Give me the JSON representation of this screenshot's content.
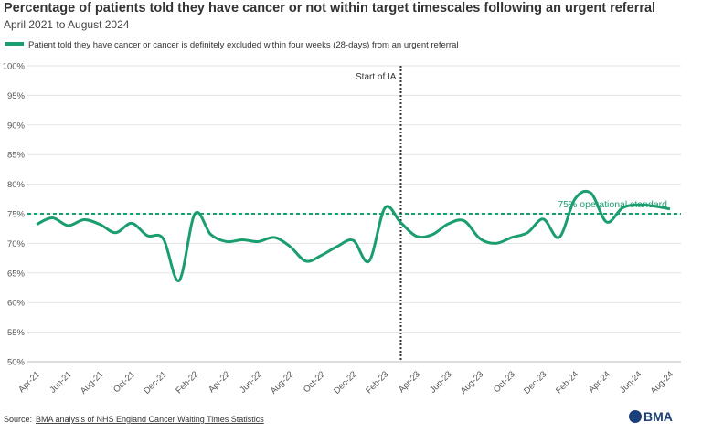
{
  "chart_data": {
    "type": "line",
    "title": "Percentage of patients told they have cancer or not within target timescales following an urgent referral",
    "subtitle": "April 2021 to August 2024",
    "categories": [
      "Apr-21",
      null,
      "Jun-21",
      null,
      "Aug-21",
      null,
      "Oct-21",
      null,
      "Dec-21",
      null,
      "Feb-22",
      null,
      "Apr-22",
      null,
      "Jun-22",
      null,
      "Aug-22",
      null,
      "Oct-22",
      null,
      "Dec-22",
      null,
      "Feb-23",
      null,
      "Apr-23",
      null,
      "Jun-23",
      null,
      "Aug-23",
      null,
      "Oct-23",
      null,
      "Dec-23",
      null,
      "Feb-24",
      null,
      "Apr-24",
      null,
      "Jun-24",
      null,
      "Aug-24"
    ],
    "series": [
      {
        "name": "Patient told they have cancer or cancer is definitely excluded within four weeks (28-days) from an urgent referral",
        "color": "#1a9e6e",
        "values": [
          73.2,
          74.3,
          73.0,
          74.0,
          73.2,
          71.8,
          73.4,
          71.3,
          70.8,
          63.7,
          75.0,
          71.5,
          70.3,
          70.6,
          70.3,
          71.0,
          69.5,
          67.0,
          68.0,
          69.5,
          70.5,
          67.0,
          76.0,
          73.5,
          71.2,
          71.5,
          73.3,
          73.8,
          70.8,
          70.0,
          71.0,
          71.8,
          74.1,
          71.0,
          77.5,
          78.5,
          73.6,
          76.0,
          76.5,
          76.3,
          75.8
        ]
      }
    ],
    "ylim": [
      50,
      100
    ],
    "yticks": [
      {
        "value": 50,
        "label": "50%"
      },
      {
        "value": 55,
        "label": "55%"
      },
      {
        "value": 60,
        "label": "60%"
      },
      {
        "value": 65,
        "label": "65%"
      },
      {
        "value": 70,
        "label": "70%"
      },
      {
        "value": 75,
        "label": "75%"
      },
      {
        "value": 80,
        "label": "80%"
      },
      {
        "value": 85,
        "label": "85%"
      },
      {
        "value": 90,
        "label": "90%"
      },
      {
        "value": 95,
        "label": "95%"
      },
      {
        "value": 100,
        "label": "100%"
      }
    ],
    "grid": true,
    "reference": {
      "value": 75,
      "label": "75% operational standard"
    },
    "annotation": {
      "label": "Start of IA",
      "index": 23
    },
    "source_prefix": "Source:",
    "source_link": "BMA analysis of NHS England Cancer Waiting Times Statistics",
    "logo": "BMA"
  }
}
